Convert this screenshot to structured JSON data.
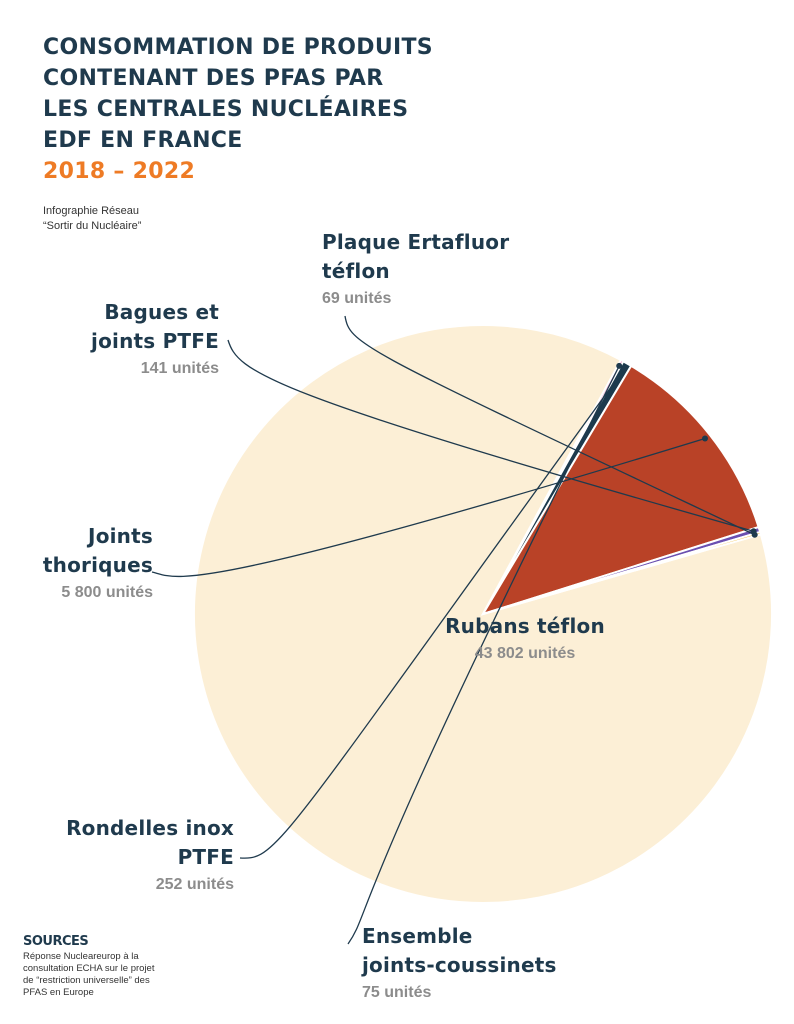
{
  "title": {
    "lines": [
      "Consommation de produits",
      "contenant des PFAS par",
      "les centrales nucléaires",
      "EDF en France"
    ],
    "years": "2018 – 2022"
  },
  "credit": [
    "Infographie Réseau",
    "“Sortir du Nucléaire”"
  ],
  "sources": {
    "title": "SOURCES",
    "text": [
      "Réponse Nucleareurop à la",
      "consultation ECHA sur le projet",
      "de “restriction universelle” des",
      "PFAS en Europe"
    ]
  },
  "chart_data": {
    "type": "pie",
    "unit": "unités",
    "slices": [
      {
        "name_lines": [
          "Rubans téflon"
        ],
        "value": 43802,
        "value_text": "43 802 unités",
        "color": "#fcefd6"
      },
      {
        "name_lines": [
          "Ensemble",
          "joints-coussinets"
        ],
        "value": 75,
        "value_text": "75 unités",
        "color": "#ee7fb8"
      },
      {
        "name_lines": [
          "Rondelles inox",
          "PTFE"
        ],
        "value": 252,
        "value_text": "252 unités",
        "color": "#1c3a4d"
      },
      {
        "name_lines": [
          "Joints",
          "thoriques"
        ],
        "value": 5800,
        "value_text": "5 800 unités",
        "color": "#b94227"
      },
      {
        "name_lines": [
          "Bagues et",
          "joints PTFE"
        ],
        "value": 141,
        "value_text": "141 unités",
        "color": "#6a4fb0"
      },
      {
        "name_lines": [
          "Plaque Ertafluor",
          "téflon"
        ],
        "value": 69,
        "value_text": "69 unités",
        "color": "#efbd3a"
      }
    ]
  }
}
